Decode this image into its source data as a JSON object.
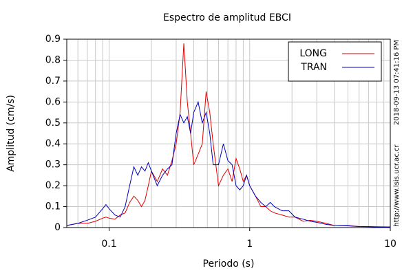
{
  "chart_data": {
    "type": "line",
    "title": "Espectro de amplitud EBCI",
    "xlabel": "Periodo (s)",
    "ylabel": "Amplitud (cm/s)",
    "timestamp": "2018-09-13 07:41:16 PM",
    "url": "http://www.lsis.ucr.ac.cr",
    "xscale": "log",
    "grid": true,
    "legend": "upper right",
    "xlim": [
      0.05,
      10
    ],
    "xticks": [
      0.1,
      1,
      10
    ],
    "ylim": [
      0,
      0.9
    ],
    "yticks": [
      0,
      0.1,
      0.2,
      0.3,
      0.4,
      0.5,
      0.6,
      0.7,
      0.8,
      0.9
    ],
    "x": [
      0.05,
      0.06,
      0.07,
      0.08,
      0.09,
      0.095,
      0.1,
      0.11,
      0.12,
      0.13,
      0.14,
      0.15,
      0.16,
      0.17,
      0.18,
      0.19,
      0.2,
      0.22,
      0.24,
      0.26,
      0.28,
      0.3,
      0.32,
      0.34,
      0.36,
      0.38,
      0.4,
      0.43,
      0.46,
      0.49,
      0.52,
      0.55,
      0.6,
      0.65,
      0.7,
      0.75,
      0.8,
      0.85,
      0.9,
      0.95,
      1.0,
      1.1,
      1.2,
      1.3,
      1.4,
      1.5,
      1.7,
      1.9,
      2.1,
      2.4,
      2.7,
      3,
      3.5,
      4,
      5,
      6,
      7,
      8,
      10
    ],
    "series": [
      {
        "name": "LONG",
        "color": "#e00000",
        "values": [
          0.01,
          0.02,
          0.02,
          0.03,
          0.045,
          0.05,
          0.045,
          0.04,
          0.06,
          0.07,
          0.12,
          0.15,
          0.13,
          0.1,
          0.13,
          0.2,
          0.27,
          0.22,
          0.28,
          0.25,
          0.32,
          0.4,
          0.55,
          0.88,
          0.6,
          0.45,
          0.3,
          0.35,
          0.4,
          0.65,
          0.55,
          0.4,
          0.2,
          0.25,
          0.28,
          0.22,
          0.33,
          0.28,
          0.22,
          0.25,
          0.2,
          0.15,
          0.1,
          0.1,
          0.08,
          0.07,
          0.06,
          0.05,
          0.05,
          0.03,
          0.035,
          0.03,
          0.02,
          0.01,
          0.01,
          0.005,
          0.005,
          0.004,
          0.003
        ]
      },
      {
        "name": "TRAN",
        "color": "#0000c0",
        "values": [
          0.01,
          0.02,
          0.035,
          0.05,
          0.09,
          0.11,
          0.09,
          0.06,
          0.05,
          0.1,
          0.2,
          0.29,
          0.25,
          0.29,
          0.27,
          0.31,
          0.27,
          0.2,
          0.25,
          0.28,
          0.3,
          0.45,
          0.54,
          0.5,
          0.53,
          0.45,
          0.55,
          0.6,
          0.5,
          0.55,
          0.45,
          0.3,
          0.3,
          0.4,
          0.32,
          0.3,
          0.2,
          0.18,
          0.2,
          0.25,
          0.2,
          0.15,
          0.12,
          0.1,
          0.12,
          0.1,
          0.08,
          0.08,
          0.05,
          0.04,
          0.03,
          0.025,
          0.015,
          0.01,
          0.008,
          0.005,
          0.004,
          0.003,
          0.003
        ]
      }
    ]
  }
}
